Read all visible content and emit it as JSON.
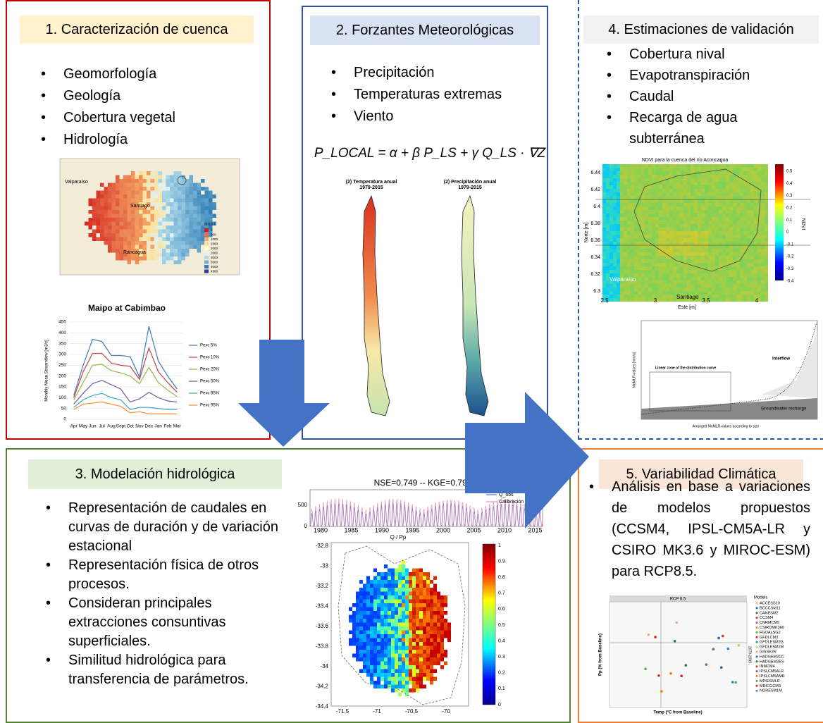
{
  "panels": [
    {
      "title": "1. Caracterización de cuenca",
      "bullets": [
        "Geomorfología",
        "Geología",
        "Cobertura vegetal",
        "Hidrología"
      ],
      "map": {
        "labels": [
          "Valparaíso",
          "Santiago",
          "Rancagua"
        ],
        "legend_title": "m.a.s.l.",
        "legend": [
          "0",
          "500",
          "1000",
          "1500",
          "2000",
          "2500",
          "3000",
          "3500",
          "4000",
          "4500"
        ]
      },
      "chart": {
        "title": "Maipo at Cabimbao",
        "y_label": "Monthly Mean Streamflow [m3/s]",
        "ylim": [
          0,
          450
        ],
        "yticks": [
          "0",
          "50",
          "100",
          "150",
          "200",
          "250",
          "300",
          "350",
          "400",
          "450"
        ],
        "months": [
          "Apr",
          "May",
          "Jun",
          "Jul",
          "Aug",
          "Sept",
          "Oct",
          "Nov",
          "Dec",
          "Jan",
          "Feb",
          "Mar"
        ],
        "series": [
          {
            "name": "Pexc 5%",
            "color": "#4f81bd",
            "values": [
              110,
              250,
              370,
              360,
              295,
              295,
              290,
              195,
              430,
              270,
              200,
              140
            ]
          },
          {
            "name": "Pexc 10%",
            "color": "#c0504d",
            "values": [
              100,
              220,
              305,
              305,
              260,
              250,
              245,
              185,
              330,
              220,
              170,
              125
            ]
          },
          {
            "name": "Pexc 20%",
            "color": "#9bbb59",
            "values": [
              90,
              170,
              250,
              255,
              225,
              215,
              200,
              165,
              240,
              170,
              135,
              105
            ]
          },
          {
            "name": "Pexc 50%",
            "color": "#8064a2",
            "values": [
              70,
              120,
              165,
              180,
              160,
              140,
              80,
              95,
              125,
              100,
              85,
              80
            ]
          },
          {
            "name": "Pexc 85%",
            "color": "#4bacc6",
            "values": [
              55,
              90,
              110,
              120,
              100,
              90,
              45,
              55,
              55,
              50,
              45,
              45
            ]
          },
          {
            "name": "Pexc 95%",
            "color": "#f79646",
            "values": [
              45,
              70,
              75,
              80,
              70,
              60,
              30,
              35,
              25,
              25,
              25,
              25
            ]
          }
        ]
      }
    },
    {
      "title": "2. Forzantes Meteorológicas",
      "bullets": [
        "Precipitación",
        "Temperaturas extremas",
        "Viento"
      ],
      "formula": "P_LOCAL = α + β P_LS + γ Q_LS · ∇Z",
      "maps": [
        {
          "title": "(2) Temperatura anual",
          "period": "1979-2015"
        },
        {
          "title": "(2) Precipitación anual",
          "period": "1979-2015"
        }
      ]
    },
    {
      "title": "3. Modelación hidrológica",
      "bullets": [
        "Representación de caudales en curvas de duración y de variación estacional",
        "Representación física de otros procesos.",
        "Consideran principales extracciones consuntivas superficiales.",
        "Similitud hidrológica para transferencia de parámetros."
      ],
      "timeseries": {
        "title": "NSE=0.749 -- KGE=0.793",
        "legend": [
          "Q_obs",
          "Calibración"
        ],
        "yticks": [
          "0",
          "500"
        ],
        "xticks": [
          "1980",
          "1985",
          "1990",
          "1995",
          "2000",
          "2005",
          "2010",
          "2015"
        ]
      },
      "map": {
        "title": "Q / Pp",
        "xticks": [
          "-71.5",
          "-71",
          "-70.5",
          "-70"
        ],
        "yticks": [
          "-32.8",
          "-33",
          "-33.2",
          "-33.4",
          "-33.6",
          "-33.8",
          "-34",
          "-34.2",
          "-34.4"
        ],
        "colorbar": [
          "1",
          "0.9",
          "0.8",
          "0.7",
          "0.6",
          "0.5",
          "0.4",
          "0.3",
          "0.2",
          "0.1",
          "0"
        ]
      }
    },
    {
      "title": "4. Estimaciones de validación",
      "bullets": [
        "Cobertura nival",
        "Evapotranspiración",
        "Caudal",
        "Recarga de agua subterránea"
      ],
      "ndvi": {
        "title": "NDVI para la cuenca del río Aconcagua",
        "x_label": "Este [m]",
        "y_label": "Norte [m]",
        "colorbar_label": "NDVI",
        "labels": [
          "Valparaíso",
          "Santiago"
        ],
        "yticks": [
          "6.44",
          "6.42",
          "6.4",
          "6.38",
          "6.36",
          "6.34",
          "6.32",
          "6.3"
        ],
        "xticks": [
          "2.5",
          "3",
          "3.5",
          "4"
        ],
        "colorbar": [
          "0.5",
          "0.4",
          "0.3",
          "0.2",
          "0.1",
          "0",
          "-0.1",
          "-0.2",
          "-0.3",
          "-0.4"
        ]
      },
      "recharge": {
        "annotations": [
          "Interflow",
          "Linear zone of the distribution curve",
          "Groundwater recharge"
        ],
        "x_label": "Arranged MoMLR-values according to size",
        "y_label": "MoMLR-values [mm/a]"
      }
    },
    {
      "title": "5. Variabilidad Climática",
      "bullets": [
        "Análisis en base a variaciones de modelos propuestos (CCSM4, IPSL-CM5A-LR y CSIRO MK3.6 y MIROC-ESM) para RCP8.5."
      ],
      "scatter": {
        "title": "RCP 8.5",
        "x_label": "Temp (°C from Baseline)",
        "y_label": "Pp (% from Baseline)",
        "period": "2070-2099",
        "legend_title": "Models",
        "models": [
          "ACCESS10",
          "BCCCSM11",
          "CANESM2",
          "CCSM4",
          "CNRMCM5",
          "CSIROMK360",
          "FGOALSG2",
          "GFDLCM3",
          "GFDLESM2G",
          "GFDLESM2M",
          "GISSE2R",
          "HADGEM2CC",
          "HADGEM2ES",
          "INMCM4",
          "IPSLCM5ALR",
          "IPSLCM5AMR",
          "MPIESMLR",
          "MRICGCM3",
          "NORESM1M"
        ]
      }
    }
  ]
}
